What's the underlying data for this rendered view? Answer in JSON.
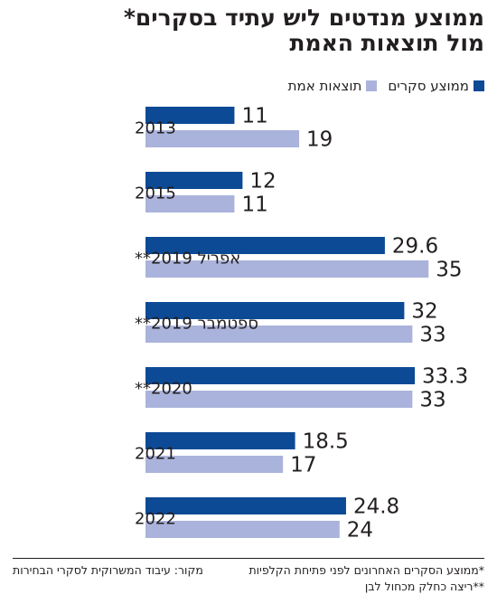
{
  "chart_data": {
    "type": "bar",
    "orientation": "horizontal",
    "title_line1": "ממוצע מנדטים ליש עתיד בסקרים*",
    "title_line2": "מול תוצאות האמת",
    "categories": [
      "2013",
      "2015",
      "אפריל 2019**",
      "ספטמבר 2019**",
      "2020**",
      "2021",
      "2022"
    ],
    "series": [
      {
        "name": "ממוצע סקרים",
        "color": "#0d4a96",
        "values": [
          11,
          12,
          29.6,
          32,
          33.3,
          18.5,
          24.8
        ],
        "labels": [
          "11",
          "12",
          "29.6",
          "32",
          "33.3",
          "18.5",
          "24.8"
        ]
      },
      {
        "name": "תוצאות אמת",
        "color": "#aab3db",
        "values": [
          19,
          11,
          35,
          33,
          33,
          17,
          24
        ],
        "labels": [
          "19",
          "11",
          "35",
          "33",
          "33",
          "17",
          "24"
        ]
      }
    ],
    "xlim": [
      0,
      40
    ],
    "grid": false,
    "legend_position": "top-right"
  },
  "footnotes": {
    "note1": "*ממוצע הסקרים האחרונים לפני פתיחת הקלפיות",
    "source": "מקור: עיבוד המשרוקית לסקרי הבחירות",
    "note2": "**ריצה כחלק מכחול לבן"
  }
}
